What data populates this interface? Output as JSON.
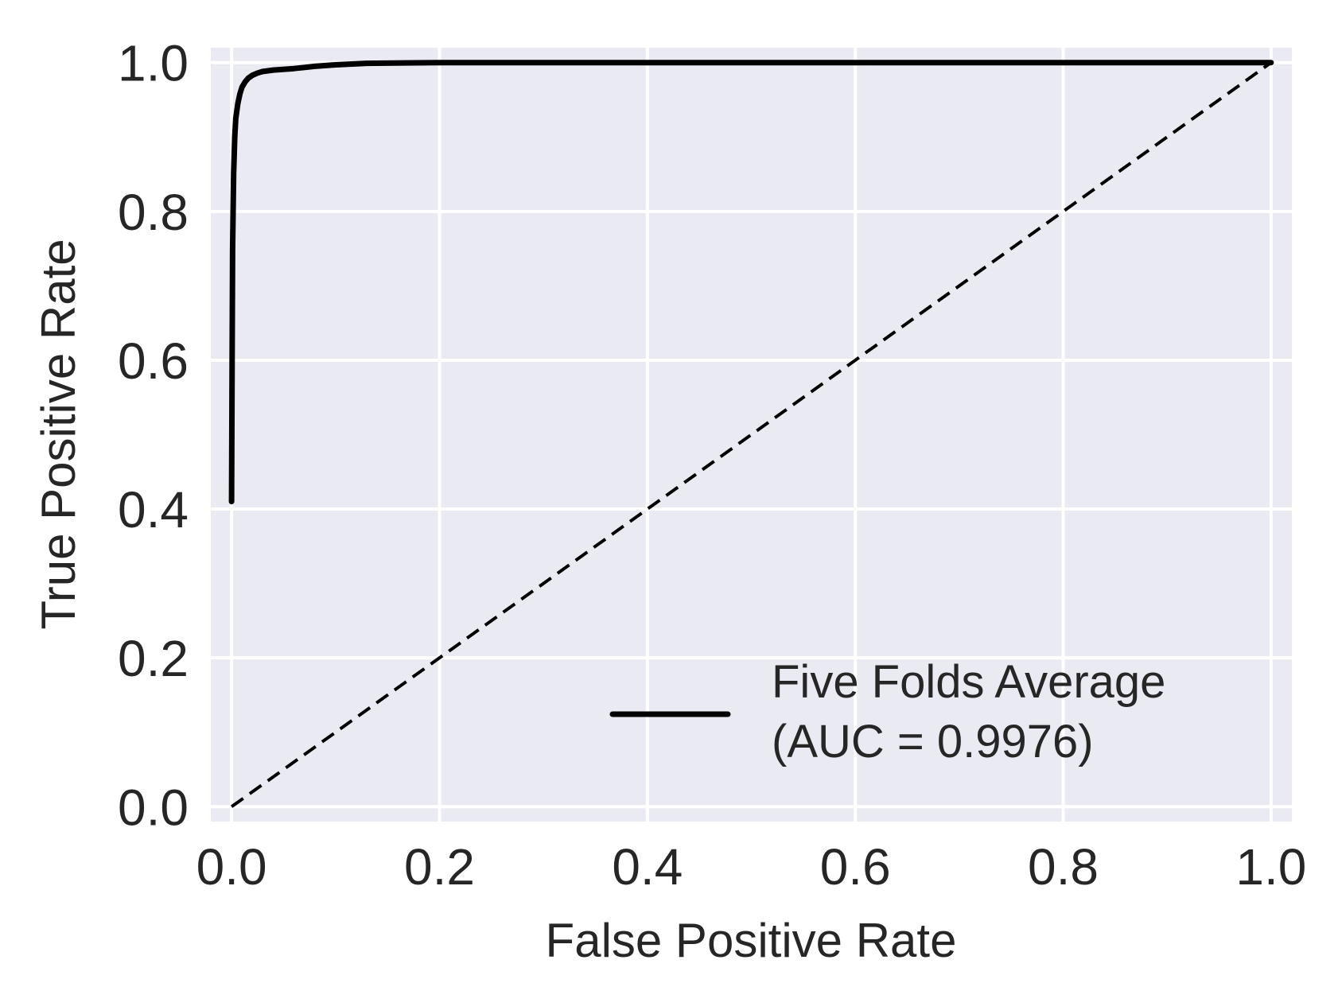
{
  "chart_data": {
    "type": "line",
    "xlabel": "False Positive Rate",
    "ylabel": "True Positive Rate",
    "xlim": [
      -0.02,
      1.02
    ],
    "ylim": [
      -0.02,
      1.02
    ],
    "xticks": [
      {
        "value": 0.0,
        "label": "0.0"
      },
      {
        "value": 0.2,
        "label": "0.2"
      },
      {
        "value": 0.4,
        "label": "0.4"
      },
      {
        "value": 0.6,
        "label": "0.6"
      },
      {
        "value": 0.8,
        "label": "0.8"
      },
      {
        "value": 1.0,
        "label": "1.0"
      }
    ],
    "yticks": [
      {
        "value": 0.0,
        "label": "0.0"
      },
      {
        "value": 0.2,
        "label": "0.2"
      },
      {
        "value": 0.4,
        "label": "0.4"
      },
      {
        "value": 0.6,
        "label": "0.6"
      },
      {
        "value": 0.8,
        "label": "0.8"
      },
      {
        "value": 1.0,
        "label": "1.0"
      }
    ],
    "grid": true,
    "background": "#eaeaf2",
    "grid_color": "#ffffff",
    "legend_position": "lower-right",
    "series": [
      {
        "name": "Five Folds Average",
        "legend_lines": [
          "Five Folds Average",
          "(AUC = 0.9976)"
        ],
        "color": "#000000",
        "style": "solid",
        "x": [
          0.0,
          0.0005,
          0.001,
          0.002,
          0.003,
          0.004,
          0.006,
          0.008,
          0.01,
          0.013,
          0.016,
          0.02,
          0.025,
          0.03,
          0.04,
          0.06,
          0.08,
          0.1,
          0.13,
          0.2,
          0.4,
          0.6,
          0.8,
          1.0
        ],
        "y": [
          0.41,
          0.6,
          0.75,
          0.85,
          0.9,
          0.925,
          0.945,
          0.958,
          0.967,
          0.974,
          0.979,
          0.983,
          0.986,
          0.988,
          0.99,
          0.992,
          0.995,
          0.997,
          0.999,
          1.0,
          1.0,
          1.0,
          1.0,
          1.0
        ]
      },
      {
        "color": "#000000",
        "style": "dashed",
        "x": [
          0.0,
          1.0
        ],
        "y": [
          0.0,
          1.0
        ]
      }
    ]
  }
}
